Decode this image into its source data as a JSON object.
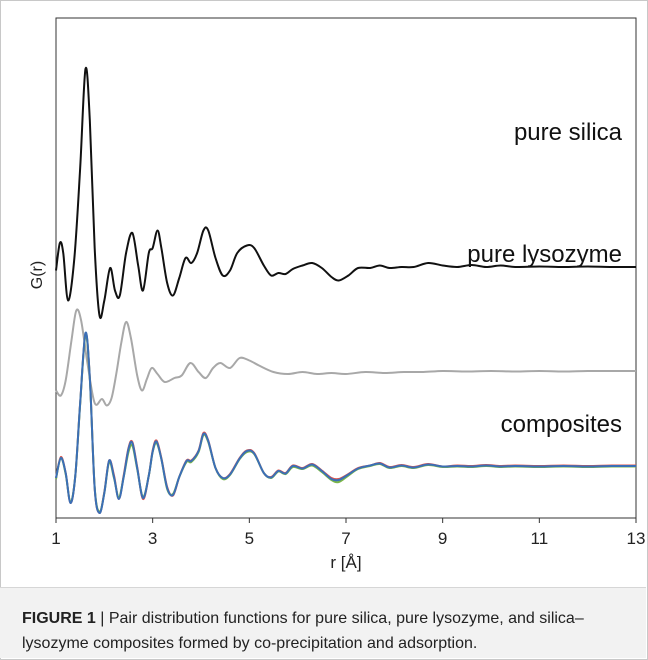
{
  "figure": {
    "caption_label": "FIGURE 1",
    "caption_text": " | Pair distribution functions for pure silica, pure lysozyme, and silica–lysozyme composites formed by co-precipitation and adsorption."
  },
  "chart_data": {
    "type": "line",
    "title": "",
    "xlabel": "r [Å]",
    "ylabel": "G(r)",
    "xlim": [
      1,
      13
    ],
    "xticks": [
      1,
      3,
      5,
      7,
      9,
      11,
      13
    ],
    "yticks": [],
    "grid": false,
    "legend": "none",
    "annotations": [
      "pure silica",
      "pure lysozyme",
      "composites"
    ],
    "series": [
      {
        "name": "pure silica",
        "color": "#111111",
        "points": [
          [
            1.0,
            4.95
          ],
          [
            1.08,
            5.5
          ],
          [
            1.15,
            5.3
          ],
          [
            1.25,
            4.35
          ],
          [
            1.38,
            5.2
          ],
          [
            1.5,
            7.0
          ],
          [
            1.61,
            8.98
          ],
          [
            1.7,
            7.95
          ],
          [
            1.8,
            5.4
          ],
          [
            1.9,
            4.05
          ],
          [
            2.0,
            4.35
          ],
          [
            2.12,
            5.0
          ],
          [
            2.22,
            4.55
          ],
          [
            2.32,
            4.45
          ],
          [
            2.45,
            5.3
          ],
          [
            2.58,
            5.7
          ],
          [
            2.7,
            5.05
          ],
          [
            2.8,
            4.55
          ],
          [
            2.92,
            5.3
          ],
          [
            3.0,
            5.4
          ],
          [
            3.1,
            5.75
          ],
          [
            3.18,
            5.4
          ],
          [
            3.3,
            4.7
          ],
          [
            3.42,
            4.45
          ],
          [
            3.55,
            4.8
          ],
          [
            3.68,
            5.2
          ],
          [
            3.8,
            5.1
          ],
          [
            3.92,
            5.3
          ],
          [
            4.05,
            5.75
          ],
          [
            4.15,
            5.75
          ],
          [
            4.3,
            5.2
          ],
          [
            4.45,
            4.85
          ],
          [
            4.6,
            4.95
          ],
          [
            4.75,
            5.3
          ],
          [
            4.95,
            5.45
          ],
          [
            5.1,
            5.4
          ],
          [
            5.3,
            5.05
          ],
          [
            5.45,
            4.85
          ],
          [
            5.6,
            4.9
          ],
          [
            5.75,
            4.88
          ],
          [
            5.9,
            4.98
          ],
          [
            6.1,
            5.05
          ],
          [
            6.3,
            5.1
          ],
          [
            6.5,
            5.0
          ],
          [
            6.7,
            4.82
          ],
          [
            6.85,
            4.75
          ],
          [
            7.05,
            4.85
          ],
          [
            7.25,
            5.0
          ],
          [
            7.5,
            5.0
          ],
          [
            7.7,
            5.05
          ],
          [
            7.9,
            5.0
          ],
          [
            8.15,
            5.02
          ],
          [
            8.4,
            5.02
          ],
          [
            8.7,
            5.1
          ],
          [
            9.0,
            5.05
          ],
          [
            9.3,
            5.02
          ],
          [
            9.6,
            5.06
          ],
          [
            9.9,
            5.02
          ],
          [
            10.2,
            5.05
          ],
          [
            10.5,
            5.02
          ],
          [
            11.0,
            5.03
          ],
          [
            11.5,
            5.02
          ],
          [
            12.0,
            5.03
          ],
          [
            12.5,
            5.02
          ],
          [
            13.0,
            5.02
          ]
        ]
      },
      {
        "name": "pure lysozyme",
        "color": "#a8a8a8",
        "points": [
          [
            1.0,
            2.55
          ],
          [
            1.1,
            2.45
          ],
          [
            1.2,
            2.75
          ],
          [
            1.32,
            3.55
          ],
          [
            1.42,
            4.15
          ],
          [
            1.52,
            3.95
          ],
          [
            1.65,
            3.1
          ],
          [
            1.8,
            2.3
          ],
          [
            1.95,
            2.38
          ],
          [
            2.05,
            2.25
          ],
          [
            2.15,
            2.4
          ],
          [
            2.25,
            2.9
          ],
          [
            2.35,
            3.5
          ],
          [
            2.45,
            3.92
          ],
          [
            2.55,
            3.6
          ],
          [
            2.68,
            2.85
          ],
          [
            2.78,
            2.55
          ],
          [
            2.88,
            2.78
          ],
          [
            2.98,
            3.0
          ],
          [
            3.1,
            2.88
          ],
          [
            3.25,
            2.72
          ],
          [
            3.45,
            2.8
          ],
          [
            3.6,
            2.85
          ],
          [
            3.78,
            3.1
          ],
          [
            3.95,
            2.92
          ],
          [
            4.1,
            2.8
          ],
          [
            4.25,
            3.0
          ],
          [
            4.4,
            3.1
          ],
          [
            4.6,
            3.0
          ],
          [
            4.8,
            3.2
          ],
          [
            5.0,
            3.15
          ],
          [
            5.2,
            3.05
          ],
          [
            5.5,
            2.92
          ],
          [
            5.8,
            2.88
          ],
          [
            6.1,
            2.92
          ],
          [
            6.4,
            2.88
          ],
          [
            6.7,
            2.9
          ],
          [
            7.0,
            2.88
          ],
          [
            7.4,
            2.92
          ],
          [
            7.8,
            2.9
          ],
          [
            8.2,
            2.92
          ],
          [
            8.6,
            2.92
          ],
          [
            9.0,
            2.94
          ],
          [
            9.5,
            2.93
          ],
          [
            10.0,
            2.94
          ],
          [
            10.5,
            2.93
          ],
          [
            11.0,
            2.94
          ],
          [
            11.5,
            2.93
          ],
          [
            12.0,
            2.94
          ],
          [
            12.5,
            2.94
          ],
          [
            13.0,
            2.94
          ]
        ]
      },
      {
        "name": "",
        "color": "#d9534f",
        "points": [
          [
            1.0,
            0.8
          ],
          [
            1.1,
            1.22
          ],
          [
            1.2,
            0.9
          ],
          [
            1.3,
            0.3
          ],
          [
            1.4,
            0.85
          ],
          [
            1.5,
            2.3
          ],
          [
            1.61,
            3.68
          ],
          [
            1.7,
            2.8
          ],
          [
            1.8,
            0.6
          ],
          [
            1.9,
            0.1
          ],
          [
            2.0,
            0.52
          ],
          [
            2.1,
            1.15
          ],
          [
            2.2,
            0.85
          ],
          [
            2.3,
            0.38
          ],
          [
            2.4,
            0.85
          ],
          [
            2.5,
            1.4
          ],
          [
            2.58,
            1.52
          ],
          [
            2.68,
            1.02
          ],
          [
            2.8,
            0.38
          ],
          [
            2.92,
            0.85
          ],
          [
            3.0,
            1.35
          ],
          [
            3.08,
            1.55
          ],
          [
            3.18,
            1.2
          ],
          [
            3.3,
            0.62
          ],
          [
            3.42,
            0.45
          ],
          [
            3.55,
            0.82
          ],
          [
            3.7,
            1.15
          ],
          [
            3.8,
            1.15
          ],
          [
            3.95,
            1.35
          ],
          [
            4.05,
            1.7
          ],
          [
            4.15,
            1.55
          ],
          [
            4.3,
            1.0
          ],
          [
            4.45,
            0.8
          ],
          [
            4.6,
            0.88
          ],
          [
            4.8,
            1.2
          ],
          [
            4.95,
            1.35
          ],
          [
            5.1,
            1.3
          ],
          [
            5.3,
            0.9
          ],
          [
            5.45,
            0.82
          ],
          [
            5.6,
            0.95
          ],
          [
            5.75,
            0.9
          ],
          [
            5.9,
            1.05
          ],
          [
            6.1,
            1.0
          ],
          [
            6.3,
            1.08
          ],
          [
            6.5,
            0.95
          ],
          [
            6.7,
            0.8
          ],
          [
            6.85,
            0.78
          ],
          [
            7.05,
            0.88
          ],
          [
            7.25,
            1.0
          ],
          [
            7.5,
            1.05
          ],
          [
            7.7,
            1.1
          ],
          [
            7.9,
            1.02
          ],
          [
            8.15,
            1.06
          ],
          [
            8.4,
            1.02
          ],
          [
            8.7,
            1.08
          ],
          [
            9.0,
            1.03
          ],
          [
            9.3,
            1.05
          ],
          [
            9.6,
            1.04
          ],
          [
            9.9,
            1.06
          ],
          [
            10.2,
            1.04
          ],
          [
            10.5,
            1.05
          ],
          [
            11.0,
            1.04
          ],
          [
            11.5,
            1.05
          ],
          [
            12.0,
            1.04
          ],
          [
            12.5,
            1.05
          ],
          [
            13.0,
            1.05
          ]
        ]
      },
      {
        "name": "",
        "color": "#7ab648",
        "points": [
          [
            1.0,
            0.78
          ],
          [
            1.1,
            1.2
          ],
          [
            1.2,
            0.88
          ],
          [
            1.3,
            0.32
          ],
          [
            1.4,
            0.85
          ],
          [
            1.5,
            2.28
          ],
          [
            1.61,
            3.66
          ],
          [
            1.7,
            2.78
          ],
          [
            1.8,
            0.62
          ],
          [
            1.9,
            0.12
          ],
          [
            2.0,
            0.5
          ],
          [
            2.1,
            1.12
          ],
          [
            2.2,
            0.8
          ],
          [
            2.3,
            0.42
          ],
          [
            2.4,
            0.82
          ],
          [
            2.5,
            1.32
          ],
          [
            2.58,
            1.45
          ],
          [
            2.68,
            0.98
          ],
          [
            2.8,
            0.42
          ],
          [
            2.92,
            0.85
          ],
          [
            3.0,
            1.32
          ],
          [
            3.08,
            1.5
          ],
          [
            3.18,
            1.18
          ],
          [
            3.3,
            0.58
          ],
          [
            3.42,
            0.48
          ],
          [
            3.55,
            0.82
          ],
          [
            3.7,
            1.12
          ],
          [
            3.8,
            1.12
          ],
          [
            3.95,
            1.32
          ],
          [
            4.05,
            1.66
          ],
          [
            4.15,
            1.52
          ],
          [
            4.3,
            1.0
          ],
          [
            4.45,
            0.78
          ],
          [
            4.6,
            0.86
          ],
          [
            4.8,
            1.18
          ],
          [
            4.95,
            1.32
          ],
          [
            5.1,
            1.28
          ],
          [
            5.3,
            0.9
          ],
          [
            5.45,
            0.8
          ],
          [
            5.6,
            0.93
          ],
          [
            5.75,
            0.88
          ],
          [
            5.9,
            1.02
          ],
          [
            6.1,
            0.98
          ],
          [
            6.3,
            1.05
          ],
          [
            6.5,
            0.92
          ],
          [
            6.7,
            0.76
          ],
          [
            6.85,
            0.72
          ],
          [
            7.05,
            0.85
          ],
          [
            7.25,
            0.98
          ],
          [
            7.5,
            1.04
          ],
          [
            7.7,
            1.08
          ],
          [
            7.9,
            1.0
          ],
          [
            8.15,
            1.04
          ],
          [
            8.4,
            1.0
          ],
          [
            8.7,
            1.06
          ],
          [
            9.0,
            1.02
          ],
          [
            9.3,
            1.03
          ],
          [
            9.6,
            1.02
          ],
          [
            9.9,
            1.04
          ],
          [
            10.2,
            1.02
          ],
          [
            10.5,
            1.03
          ],
          [
            11.0,
            1.02
          ],
          [
            11.5,
            1.03
          ],
          [
            12.0,
            1.02
          ],
          [
            12.5,
            1.03
          ],
          [
            13.0,
            1.03
          ]
        ]
      },
      {
        "name": "",
        "color": "#3b6fb6",
        "points": [
          [
            1.0,
            0.8
          ],
          [
            1.1,
            1.2
          ],
          [
            1.2,
            0.9
          ],
          [
            1.3,
            0.3
          ],
          [
            1.4,
            0.85
          ],
          [
            1.5,
            2.3
          ],
          [
            1.61,
            3.7
          ],
          [
            1.7,
            2.8
          ],
          [
            1.8,
            0.6
          ],
          [
            1.9,
            0.1
          ],
          [
            2.0,
            0.5
          ],
          [
            2.1,
            1.15
          ],
          [
            2.2,
            0.82
          ],
          [
            2.3,
            0.38
          ],
          [
            2.4,
            0.82
          ],
          [
            2.5,
            1.38
          ],
          [
            2.58,
            1.5
          ],
          [
            2.68,
            1.0
          ],
          [
            2.8,
            0.4
          ],
          [
            2.92,
            0.85
          ],
          [
            3.0,
            1.33
          ],
          [
            3.08,
            1.53
          ],
          [
            3.18,
            1.18
          ],
          [
            3.3,
            0.6
          ],
          [
            3.42,
            0.46
          ],
          [
            3.55,
            0.82
          ],
          [
            3.7,
            1.14
          ],
          [
            3.8,
            1.14
          ],
          [
            3.95,
            1.34
          ],
          [
            4.05,
            1.68
          ],
          [
            4.15,
            1.54
          ],
          [
            4.3,
            1.0
          ],
          [
            4.45,
            0.8
          ],
          [
            4.6,
            0.87
          ],
          [
            4.8,
            1.19
          ],
          [
            4.95,
            1.34
          ],
          [
            5.1,
            1.29
          ],
          [
            5.3,
            0.9
          ],
          [
            5.45,
            0.81
          ],
          [
            5.6,
            0.94
          ],
          [
            5.75,
            0.89
          ],
          [
            5.9,
            1.04
          ],
          [
            6.1,
            0.99
          ],
          [
            6.3,
            1.07
          ],
          [
            6.5,
            0.94
          ],
          [
            6.7,
            0.78
          ],
          [
            6.85,
            0.76
          ],
          [
            7.05,
            0.87
          ],
          [
            7.25,
            0.99
          ],
          [
            7.5,
            1.05
          ],
          [
            7.7,
            1.09
          ],
          [
            7.9,
            1.01
          ],
          [
            8.15,
            1.05
          ],
          [
            8.4,
            1.01
          ],
          [
            8.7,
            1.07
          ],
          [
            9.0,
            1.03
          ],
          [
            9.3,
            1.04
          ],
          [
            9.6,
            1.03
          ],
          [
            9.9,
            1.05
          ],
          [
            10.2,
            1.03
          ],
          [
            10.5,
            1.04
          ],
          [
            11.0,
            1.03
          ],
          [
            11.5,
            1.04
          ],
          [
            12.0,
            1.03
          ],
          [
            12.5,
            1.04
          ],
          [
            13.0,
            1.04
          ]
        ]
      }
    ]
  }
}
